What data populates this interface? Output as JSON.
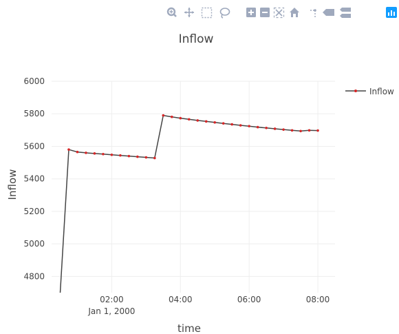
{
  "chart_data": {
    "type": "line",
    "title": "Inflow",
    "xlabel": "time",
    "ylabel": "Inflow",
    "x_ticks": [
      {
        "time": "02:00",
        "sub": "Jan 1, 2000"
      },
      {
        "time": "04:00",
        "sub": ""
      },
      {
        "time": "06:00",
        "sub": ""
      },
      {
        "time": "08:00",
        "sub": ""
      }
    ],
    "y_ticks": [
      4800,
      5000,
      5200,
      5400,
      5600,
      5800,
      6000
    ],
    "ylim": [
      4700,
      6000
    ],
    "grid": true,
    "legend": "top-right",
    "series": [
      {
        "name": "Inflow",
        "line_color": "#444444",
        "marker_color": "#d62728",
        "x": [
          "2000-01-01 00:30",
          "2000-01-01 00:45",
          "2000-01-01 01:00",
          "2000-01-01 01:15",
          "2000-01-01 01:30",
          "2000-01-01 01:45",
          "2000-01-01 02:00",
          "2000-01-01 02:15",
          "2000-01-01 02:30",
          "2000-01-01 02:45",
          "2000-01-01 03:00",
          "2000-01-01 03:15",
          "2000-01-01 03:30",
          "2000-01-01 03:45",
          "2000-01-01 04:00",
          "2000-01-01 04:15",
          "2000-01-01 04:30",
          "2000-01-01 04:45",
          "2000-01-01 05:00",
          "2000-01-01 05:15",
          "2000-01-01 05:30",
          "2000-01-01 05:45",
          "2000-01-01 06:00",
          "2000-01-01 06:15",
          "2000-01-01 06:30",
          "2000-01-01 06:45",
          "2000-01-01 07:00",
          "2000-01-01 07:15",
          "2000-01-01 07:30",
          "2000-01-01 07:45",
          "2000-01-01 08:00"
        ],
        "y": [
          4700,
          5580,
          5565,
          5560,
          5556,
          5552,
          5548,
          5544,
          5540,
          5536,
          5532,
          5528,
          5790,
          5781,
          5773,
          5766,
          5759,
          5753,
          5747,
          5741,
          5735,
          5729,
          5724,
          5718,
          5713,
          5708,
          5703,
          5698,
          5694,
          5698,
          5697
        ]
      }
    ]
  },
  "modebar": {
    "icons": [
      "zoom-icon",
      "pan-icon",
      "box-select-icon",
      "lasso-select-icon",
      "zoom-in-icon",
      "zoom-out-icon",
      "autoscale-icon",
      "reset-axes-icon",
      "spike-lines-icon",
      "hover-closest-icon",
      "hover-compare-icon",
      "plotly-logo-icon"
    ]
  }
}
